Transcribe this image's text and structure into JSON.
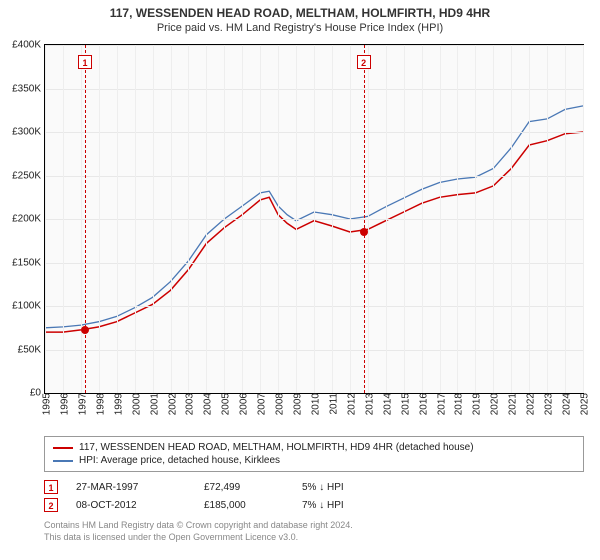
{
  "title": "117, WESSENDEN HEAD ROAD, MELTHAM, HOLMFIRTH, HD9 4HR",
  "subtitle": "Price paid vs. HM Land Registry's House Price Index (HPI)",
  "chart": {
    "type": "line",
    "background_color": "#fafafa",
    "grid_color": "#e8e8e8",
    "axis_color": "#000000",
    "label_fontsize": 10,
    "ylim": [
      0,
      400000
    ],
    "ytick_step": 50000,
    "yticks": [
      "£0",
      "£50K",
      "£100K",
      "£150K",
      "£200K",
      "£250K",
      "£300K",
      "£350K",
      "£400K"
    ],
    "xlim": [
      1995,
      2025
    ],
    "xticks": [
      "1995",
      "1996",
      "1997",
      "1998",
      "1999",
      "2000",
      "2001",
      "2002",
      "2003",
      "2004",
      "2005",
      "2006",
      "2007",
      "2008",
      "2009",
      "2010",
      "2011",
      "2012",
      "2013",
      "2014",
      "2015",
      "2016",
      "2017",
      "2018",
      "2019",
      "2020",
      "2021",
      "2022",
      "2023",
      "2024",
      "2025"
    ],
    "series": [
      {
        "name": "price_paid",
        "label": "117, WESSENDEN HEAD ROAD, MELTHAM, HOLMFIRTH, HD9 4HR (detached house)",
        "color": "#cc0000",
        "line_width": 1.5,
        "x": [
          1995,
          1996,
          1997,
          1998,
          1999,
          2000,
          2001,
          2002,
          2003,
          2004,
          2005,
          2006,
          2007,
          2007.5,
          2008,
          2008.5,
          2009,
          2010,
          2011,
          2012,
          2013,
          2014,
          2015,
          2016,
          2017,
          2018,
          2019,
          2020,
          2021,
          2022,
          2023,
          2024,
          2025
        ],
        "y": [
          70000,
          70000,
          72499,
          76000,
          82000,
          92000,
          102000,
          118000,
          142000,
          172000,
          190000,
          205000,
          222000,
          225000,
          205000,
          195000,
          188000,
          198000,
          192000,
          185000,
          188000,
          198000,
          208000,
          218000,
          225000,
          228000,
          230000,
          238000,
          258000,
          285000,
          290000,
          298000,
          300000
        ]
      },
      {
        "name": "hpi",
        "label": "HPI: Average price, detached house, Kirklees",
        "color": "#4a78b5",
        "line_width": 1.3,
        "x": [
          1995,
          1996,
          1997,
          1998,
          1999,
          2000,
          2001,
          2002,
          2003,
          2004,
          2005,
          2006,
          2007,
          2007.5,
          2008,
          2008.5,
          2009,
          2010,
          2011,
          2012,
          2013,
          2014,
          2015,
          2016,
          2017,
          2018,
          2019,
          2020,
          2021,
          2022,
          2023,
          2024,
          2025
        ],
        "y": [
          75000,
          76000,
          78000,
          82000,
          88000,
          98000,
          110000,
          128000,
          152000,
          182000,
          200000,
          215000,
          230000,
          232000,
          215000,
          205000,
          198000,
          208000,
          205000,
          200000,
          203000,
          214000,
          224000,
          234000,
          242000,
          246000,
          248000,
          258000,
          282000,
          312000,
          315000,
          326000,
          330000
        ]
      }
    ],
    "markers": [
      {
        "n": "1",
        "x": 1997.23,
        "y": 72499
      },
      {
        "n": "2",
        "x": 2012.77,
        "y": 185000
      }
    ],
    "marker_color": "#cc0000"
  },
  "legend": {
    "items": [
      {
        "color": "#cc0000",
        "label": "117, WESSENDEN HEAD ROAD, MELTHAM, HOLMFIRTH, HD9 4HR (detached house)"
      },
      {
        "color": "#4a78b5",
        "label": "HPI: Average price, detached house, Kirklees"
      }
    ]
  },
  "sales": [
    {
      "n": "1",
      "date": "27-MAR-1997",
      "price": "£72,499",
      "delta": "5%",
      "direction": "down",
      "suffix": "HPI"
    },
    {
      "n": "2",
      "date": "08-OCT-2012",
      "price": "£185,000",
      "delta": "7%",
      "direction": "down",
      "suffix": "HPI"
    }
  ],
  "footer": {
    "line1": "Contains HM Land Registry data © Crown copyright and database right 2024.",
    "line2": "This data is licensed under the Open Government Licence v3.0."
  }
}
